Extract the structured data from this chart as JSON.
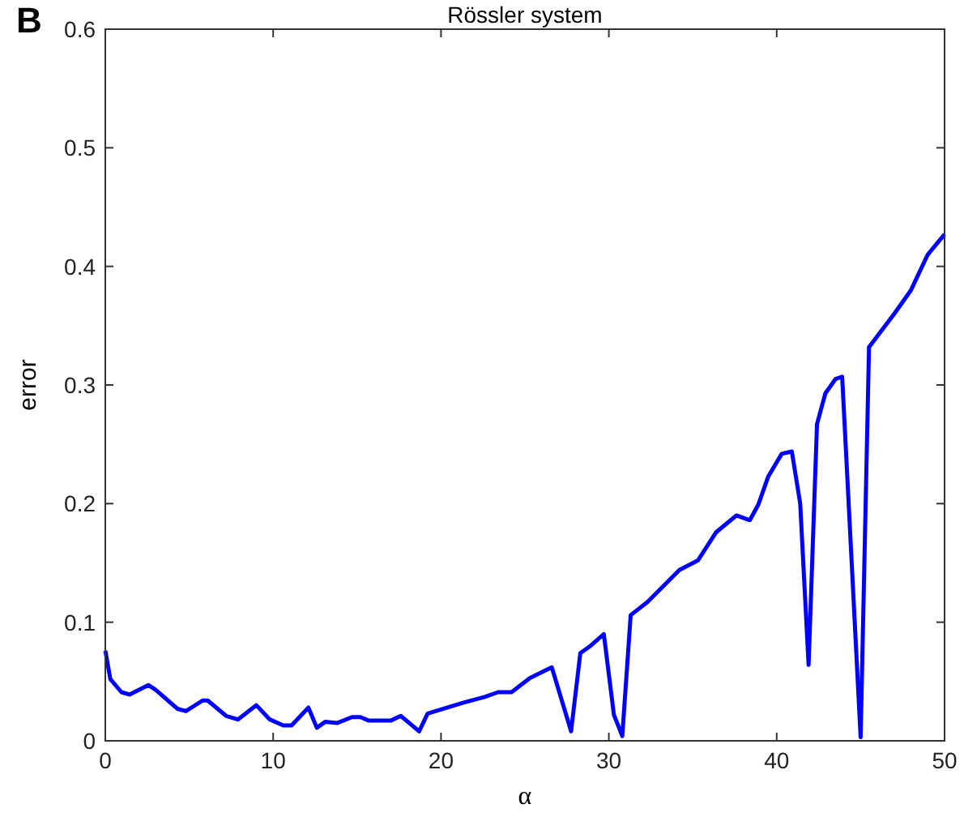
{
  "chart_data": {
    "type": "line",
    "title": "Rössler system",
    "xlabel": "α",
    "ylabel": "error",
    "annotations": [
      "B"
    ],
    "x": [
      0,
      0.3,
      0.96,
      1.44,
      2.56,
      3.0,
      4.3,
      4.8,
      5.8,
      6.1,
      7.2,
      7.9,
      9.0,
      9.8,
      10.6,
      11.1,
      12.1,
      12.6,
      13.1,
      13.8,
      14.7,
      15.2,
      15.7,
      17.0,
      17.6,
      18.7,
      19.2,
      21.3,
      22.6,
      23.4,
      24.2,
      25.3,
      26.6,
      27.75,
      28.3,
      28.9,
      29.7,
      30.3,
      30.8,
      31.3,
      32.3,
      34.2,
      35.3,
      36.4,
      37.6,
      38.4,
      38.9,
      39.5,
      40.3,
      40.9,
      41.4,
      41.9,
      42.4,
      42.9,
      43.5,
      43.9,
      45.0,
      45.5,
      47,
      48,
      49,
      50
    ],
    "series": [
      {
        "color": "#0000ff",
        "values": [
          0.076,
          0.052,
          0.041,
          0.039,
          0.047,
          0.043,
          0.027,
          0.025,
          0.034,
          0.034,
          0.021,
          0.018,
          0.03,
          0.018,
          0.013,
          0.013,
          0.028,
          0.011,
          0.016,
          0.015,
          0.02,
          0.02,
          0.017,
          0.017,
          0.021,
          0.008,
          0.023,
          0.032,
          0.037,
          0.041,
          0.041,
          0.053,
          0.062,
          0.008,
          0.074,
          0.08,
          0.09,
          0.022,
          0.004,
          0.106,
          0.117,
          0.144,
          0.152,
          0.176,
          0.19,
          0.186,
          0.199,
          0.223,
          0.242,
          0.244,
          0.2,
          0.064,
          0.267,
          0.293,
          0.305,
          0.307,
          0.003,
          0.332,
          0.36,
          0.38,
          0.41,
          0.427
        ]
      }
    ],
    "xlim": [
      0,
      50
    ],
    "xticks": [
      0,
      10,
      20,
      30,
      40,
      50
    ],
    "ylim": [
      0,
      0.6
    ],
    "yticks": [
      0,
      0.1,
      0.2,
      0.3,
      0.4,
      0.5,
      0.6
    ],
    "grid": false,
    "marker": "none",
    "line_style": "solid"
  }
}
